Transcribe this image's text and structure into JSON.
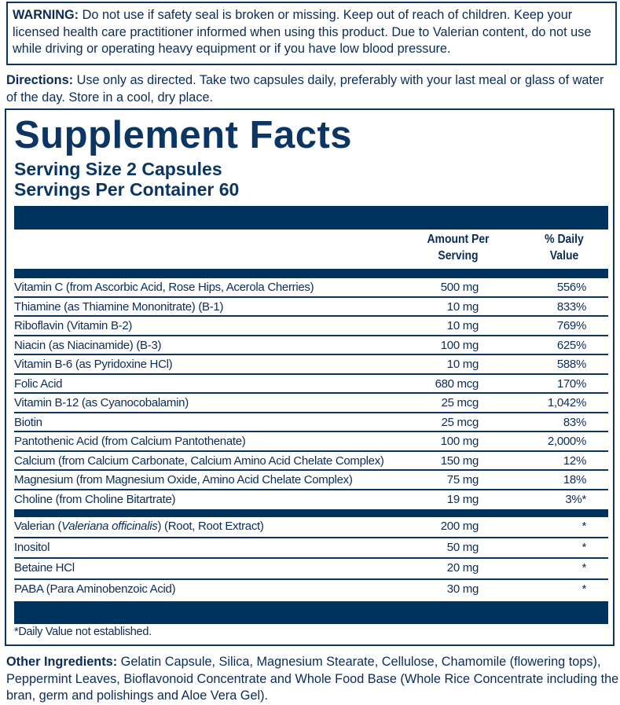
{
  "warning": {
    "label": "WARNING:",
    "text": " Do not use if safety seal is broken or missing. Keep out of reach of children. Keep your licensed health care practitioner informed when using this product. Due to Valerian content, do not use while driving or operating heavy equipment or if you have low blood pressure."
  },
  "directions": {
    "label": "Directions:",
    "text": " Use only as directed. Take two capsules daily, preferably with your last meal or glass of water of the day. Store in a cool, dry place."
  },
  "facts": {
    "title": "Supplement Facts",
    "serving_size": "Serving Size 2 Capsules",
    "servings_per_container": "Servings Per Container 60",
    "col_amount": "Amount Per Serving",
    "col_dv": "% Daily Value",
    "vitamins": [
      {
        "name": "Vitamin C (from Ascorbic Acid, Rose Hips, Acerola Cherries)",
        "amount": "500 mg",
        "dv": "556%"
      },
      {
        "name": "Thiamine (as Thiamine Mononitrate) (B-1)",
        "amount": "10 mg",
        "dv": "833%"
      },
      {
        "name": "Riboflavin (Vitamin B-2)",
        "amount": "10 mg",
        "dv": "769%"
      },
      {
        "name": "Niacin (as Niacinamide) (B-3)",
        "amount": "100 mg",
        "dv": "625%"
      },
      {
        "name": "Vitamin B-6 (as Pyridoxine HCl)",
        "amount": "10 mg",
        "dv": "588%"
      },
      {
        "name": "Folic Acid",
        "amount": "680 mcg",
        "dv": "170%"
      },
      {
        "name": "Vitamin B-12 (as Cyanocobalamin)",
        "amount": "25 mcg",
        "dv": "1,042%"
      },
      {
        "name": "Biotin",
        "amount": "25 mcg",
        "dv": "83%"
      },
      {
        "name": "Pantothenic Acid (from Calcium Pantothenate)",
        "amount": "100 mg",
        "dv": "2,000%"
      },
      {
        "name": "Calcium (from Calcium Carbonate, Calcium Amino Acid Chelate Complex)",
        "amount": "150 mg",
        "dv": "12%"
      },
      {
        "name": "Magnesium (from Magnesium Oxide, Amino Acid Chelate Complex)",
        "amount": "75 mg",
        "dv": "18%"
      },
      {
        "name": "Choline (from Choline Bitartrate)",
        "amount": "19 mg",
        "dv": "3%*"
      }
    ],
    "others": [
      {
        "name_pre": "Valerian (",
        "name_italic": "Valeriana officinalis",
        "name_post": ") (Root, Root Extract)",
        "amount": "200 mg",
        "dv": "*"
      },
      {
        "name_pre": "Inositol",
        "name_italic": "",
        "name_post": "",
        "amount": "50 mg",
        "dv": "*"
      },
      {
        "name_pre": "Betaine HCl",
        "name_italic": "",
        "name_post": "",
        "amount": "20 mg",
        "dv": "*"
      },
      {
        "name_pre": "PABA (Para Aminobenzoic Acid)",
        "name_italic": "",
        "name_post": "",
        "amount": "30 mg",
        "dv": "*"
      }
    ],
    "footnote": "*Daily Value not established."
  },
  "other_ingredients": {
    "label": "Other Ingredients:",
    "text": " Gelatin Capsule, Silica, Magnesium Stearate, Cellulose, Chamomile (flowering tops), Peppermint Leaves, Bioflavonoid Concentrate and Whole Food Base (Whole Rice Concentrate including the bran, germ and polishings and Aloe Vera Gel)."
  },
  "colors": {
    "navy": "#00345f",
    "text": "#0b2c57"
  }
}
